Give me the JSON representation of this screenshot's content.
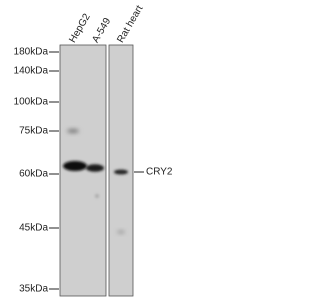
{
  "lanes": [
    "HepG2",
    "A-549",
    "Rat heart"
  ],
  "markers": [
    "180kDa",
    "140kDa",
    "100kDa",
    "75kDa",
    "60kDa",
    "45kDa",
    "35kDa"
  ],
  "target": "CRY2"
}
